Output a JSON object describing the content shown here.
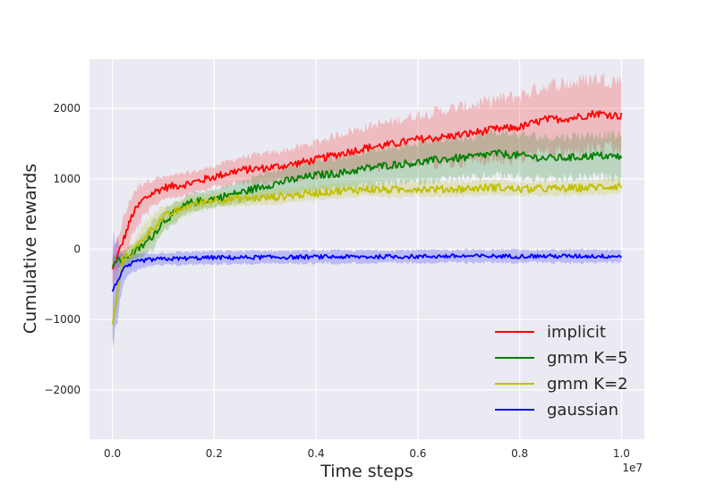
{
  "chart_data": {
    "type": "line",
    "xlabel": "Time steps",
    "ylabel": "Cumulative rewards",
    "x_offset_label": "1e7",
    "xlim": [
      -0.045,
      1.045
    ],
    "ylim": [
      -2700,
      2700
    ],
    "x_ticks": [
      0.0,
      0.2,
      0.4,
      0.6,
      0.8,
      1.0
    ],
    "x_tick_labels": [
      "0.0",
      "0.2",
      "0.4",
      "0.6",
      "0.8",
      "1.0"
    ],
    "y_ticks": [
      -2000,
      -1000,
      0,
      1000,
      2000
    ],
    "y_tick_labels": [
      "−2000",
      "−1000",
      "0",
      "1000",
      "2000"
    ],
    "grid": true,
    "legend_position": "bottom-right",
    "series": [
      {
        "name": "implicit",
        "color": "#ff0000",
        "x": [
          0.0,
          0.02,
          0.04,
          0.06,
          0.08,
          0.1,
          0.15,
          0.2,
          0.25,
          0.3,
          0.35,
          0.4,
          0.45,
          0.5,
          0.55,
          0.6,
          0.65,
          0.7,
          0.75,
          0.8,
          0.85,
          0.9,
          0.95,
          1.0
        ],
        "values": [
          -300,
          100,
          500,
          700,
          800,
          870,
          930,
          1030,
          1120,
          1150,
          1200,
          1270,
          1360,
          1440,
          1490,
          1560,
          1590,
          1640,
          1700,
          1730,
          1840,
          1860,
          1930,
          1890
        ],
        "band_width": [
          200,
          300,
          300,
          250,
          200,
          150,
          150,
          150,
          180,
          200,
          220,
          250,
          280,
          300,
          320,
          350,
          380,
          400,
          420,
          450,
          480,
          500,
          500,
          500
        ]
      },
      {
        "name": "gmm K=5",
        "color": "#008000",
        "x": [
          0.0,
          0.02,
          0.04,
          0.06,
          0.08,
          0.1,
          0.15,
          0.2,
          0.25,
          0.3,
          0.35,
          0.4,
          0.45,
          0.5,
          0.55,
          0.6,
          0.65,
          0.7,
          0.75,
          0.8,
          0.85,
          0.9,
          0.95,
          1.0
        ],
        "values": [
          -200,
          -150,
          -50,
          50,
          200,
          400,
          650,
          720,
          800,
          900,
          980,
          1050,
          1080,
          1150,
          1200,
          1230,
          1280,
          1300,
          1360,
          1330,
          1290,
          1300,
          1330,
          1310
        ],
        "band_width": [
          100,
          100,
          120,
          150,
          200,
          150,
          120,
          120,
          150,
          180,
          200,
          220,
          230,
          250,
          260,
          280,
          280,
          300,
          300,
          300,
          300,
          300,
          300,
          300
        ]
      },
      {
        "name": "gmm K=2",
        "color": "#bfbf00",
        "x": [
          0.0,
          0.02,
          0.04,
          0.06,
          0.08,
          0.1,
          0.15,
          0.2,
          0.25,
          0.3,
          0.35,
          0.4,
          0.45,
          0.5,
          0.55,
          0.6,
          0.65,
          0.7,
          0.75,
          0.8,
          0.85,
          0.9,
          0.95,
          1.0
        ],
        "values": [
          -1100,
          -150,
          -50,
          150,
          300,
          450,
          620,
          700,
          720,
          730,
          760,
          800,
          830,
          850,
          840,
          860,
          850,
          860,
          880,
          850,
          860,
          860,
          880,
          900
        ],
        "band_width": [
          300,
          100,
          150,
          200,
          200,
          150,
          120,
          100,
          100,
          100,
          100,
          100,
          100,
          100,
          100,
          100,
          100,
          100,
          100,
          100,
          100,
          100,
          100,
          100
        ]
      },
      {
        "name": "gaussian",
        "color": "#0000ff",
        "x": [
          0.0,
          0.02,
          0.04,
          0.06,
          0.08,
          0.1,
          0.15,
          0.2,
          0.25,
          0.3,
          0.35,
          0.4,
          0.45,
          0.5,
          0.55,
          0.6,
          0.65,
          0.7,
          0.75,
          0.8,
          0.85,
          0.9,
          0.95,
          1.0
        ],
        "values": [
          -600,
          -300,
          -200,
          -160,
          -150,
          -140,
          -130,
          -120,
          -120,
          -115,
          -115,
          -110,
          -110,
          -110,
          -105,
          -105,
          -100,
          -100,
          -100,
          -100,
          -100,
          -100,
          -100,
          -100
        ],
        "band_width": [
          800,
          200,
          120,
          100,
          90,
          90,
          90,
          90,
          90,
          90,
          90,
          90,
          90,
          90,
          90,
          90,
          90,
          90,
          90,
          90,
          90,
          90,
          90,
          90
        ]
      }
    ]
  }
}
